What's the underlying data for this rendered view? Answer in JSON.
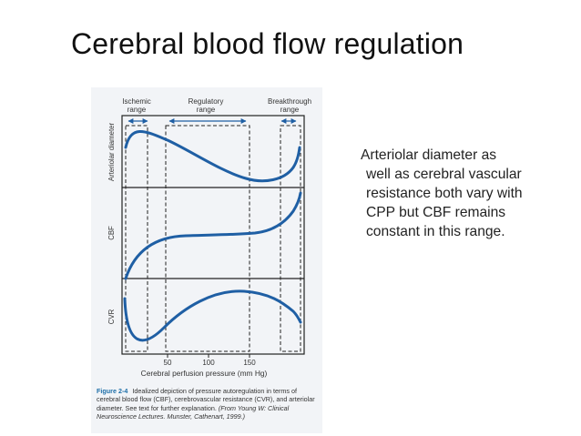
{
  "slide": {
    "title": "Cerebral blood flow regulation"
  },
  "figure": {
    "ranges": {
      "ischemic": [
        "Ischemic",
        "range"
      ],
      "regulatory": [
        "Regulatory",
        "range"
      ],
      "breakthrough": [
        "Breakthrough",
        "range"
      ]
    },
    "panels": {
      "arteriolar": "Arteriolar diameter",
      "cbf": "CBF",
      "cvr": "CVR"
    },
    "ticks": [
      "50",
      "100",
      "150"
    ],
    "xlabel": "Cerebral perfusion pressure (mm Hg)",
    "caption": {
      "label": "Figure 2-4",
      "text": "Idealized depiction of pressure autoregulation in terms of cerebral blood flow (CBF), cerebrovascular resistance (CVR), and arteriolar diameter. See text for further explanation.",
      "source": "(From Young W: Clinical Neuroscience Lectures. Munster, Cathenart, 1999.)"
    },
    "colors": {
      "curve": "#1f5fa4",
      "caption_label": "#1e6fa8"
    }
  },
  "description": {
    "lines": [
      "Arteriolar diameter as",
      "well as cerebral vascular",
      "resistance both vary with",
      "CPP but CBF remains",
      "constant in this range."
    ]
  }
}
